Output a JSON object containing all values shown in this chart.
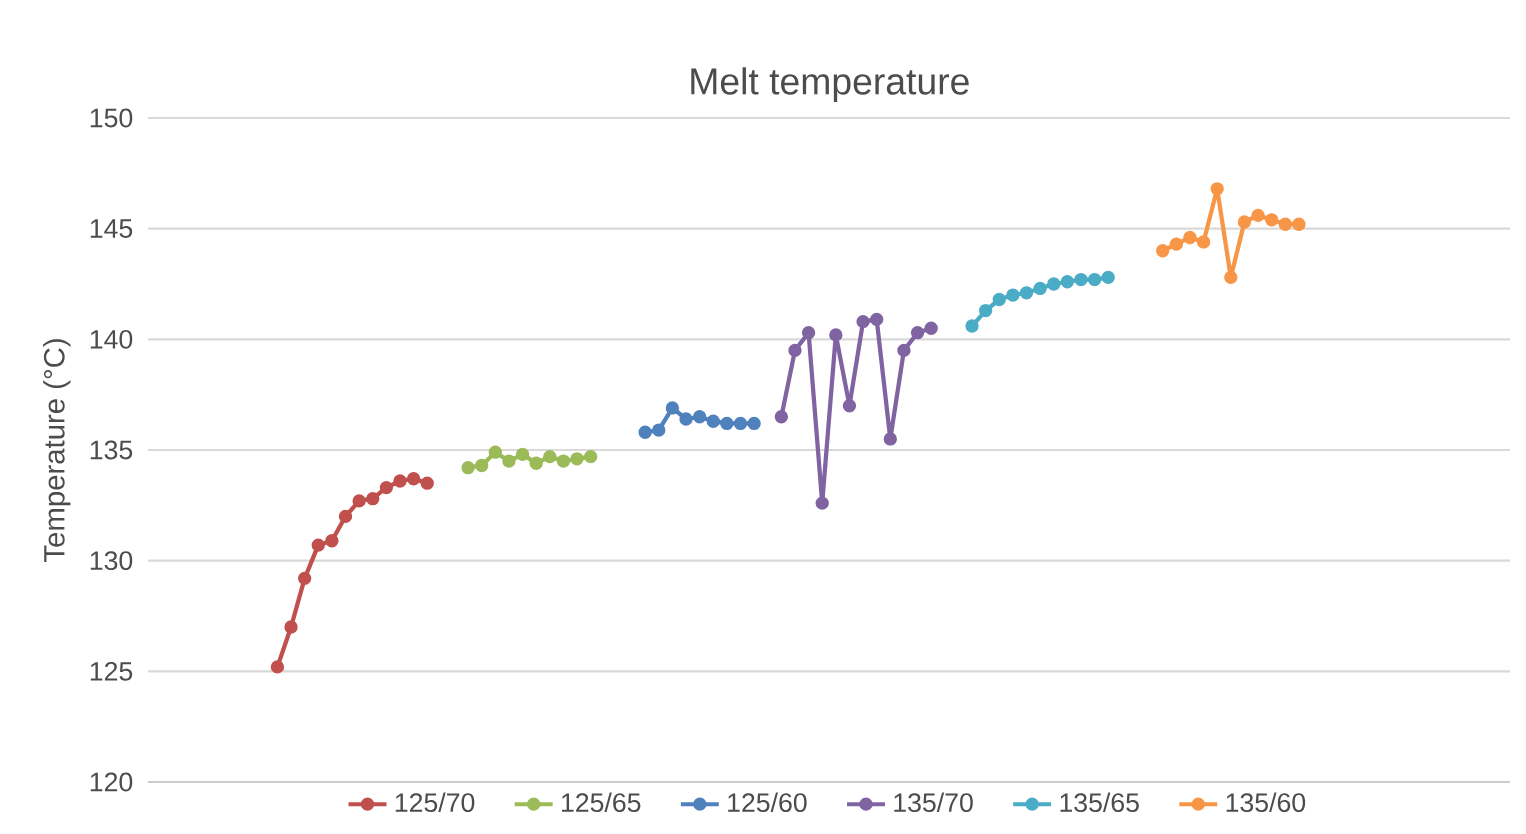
{
  "chart_data": {
    "type": "line",
    "title": "Melt temperature",
    "ylabel": "Temperature (°C)",
    "categories": [
      null,
      null,
      null,
      null,
      null,
      null,
      null,
      null,
      null,
      null,
      null,
      null,
      null,
      null,
      null,
      null,
      null,
      null,
      null,
      null,
      null,
      null,
      null,
      null,
      null,
      null,
      null,
      null,
      null,
      null,
      null,
      null,
      null,
      null,
      null,
      null,
      null,
      null,
      null,
      null,
      null,
      null,
      null,
      null,
      null,
      null,
      null,
      null,
      null,
      null,
      null,
      null,
      null,
      null,
      null,
      null,
      null,
      null,
      null,
      null,
      null,
      null,
      null,
      null,
      null,
      null,
      null,
      null,
      null,
      null,
      null,
      null,
      null,
      null,
      null,
      null,
      null,
      null,
      null,
      null,
      null,
      null,
      null,
      null,
      null,
      null,
      null,
      null,
      null,
      null,
      null,
      null,
      null,
      null,
      null,
      null,
      null,
      null,
      null,
      null
    ],
    "series": [
      {
        "name": "125/70",
        "color": "#c0504d",
        "values": [
          null,
          null,
          null,
          null,
          null,
          null,
          null,
          null,
          null,
          125.2,
          127.0,
          129.2,
          130.7,
          130.9,
          132.0,
          132.7,
          132.8,
          133.3,
          133.6,
          133.7,
          133.5,
          null,
          null,
          null,
          null,
          null,
          null,
          null,
          null,
          null,
          null,
          null,
          null,
          null,
          null,
          null,
          null,
          null,
          null,
          null,
          null,
          null,
          null,
          null,
          null,
          null,
          null,
          null,
          null,
          null,
          null,
          null,
          null,
          null,
          null,
          null,
          null,
          null,
          null,
          null,
          null,
          null,
          null,
          null,
          null,
          null,
          null,
          null,
          null,
          null,
          null,
          null,
          null,
          null,
          null,
          null,
          null,
          null,
          null,
          null,
          null,
          null,
          null,
          null,
          null,
          null,
          null,
          null,
          null,
          null,
          null,
          null,
          null,
          null,
          null,
          null,
          null,
          null,
          null,
          null
        ]
      },
      {
        "name": "125/65",
        "color": "#9bbb59",
        "values": [
          null,
          null,
          null,
          null,
          null,
          null,
          null,
          null,
          null,
          null,
          null,
          null,
          null,
          null,
          null,
          null,
          null,
          null,
          null,
          null,
          null,
          null,
          null,
          134.2,
          134.3,
          134.9,
          134.5,
          134.8,
          134.4,
          134.7,
          134.5,
          134.6,
          134.7,
          null,
          null,
          null,
          null,
          null,
          null,
          null,
          null,
          null,
          null,
          null,
          null,
          null,
          null,
          null,
          null,
          null,
          null,
          null,
          null,
          null,
          null,
          null,
          null,
          null,
          null,
          null,
          null,
          null,
          null,
          null,
          null,
          null,
          null,
          null,
          null,
          null,
          null,
          null,
          null,
          null,
          null,
          null,
          null,
          null,
          null,
          null,
          null,
          null,
          null,
          null,
          null,
          null,
          null,
          null,
          null,
          null,
          null,
          null,
          null,
          null,
          null,
          null,
          null,
          null,
          null,
          null
        ]
      },
      {
        "name": "125/60",
        "color": "#4f81bd",
        "values": [
          null,
          null,
          null,
          null,
          null,
          null,
          null,
          null,
          null,
          null,
          null,
          null,
          null,
          null,
          null,
          null,
          null,
          null,
          null,
          null,
          null,
          null,
          null,
          null,
          null,
          null,
          null,
          null,
          null,
          null,
          null,
          null,
          null,
          null,
          null,
          null,
          135.8,
          135.9,
          136.9,
          136.4,
          136.5,
          136.3,
          136.2,
          136.2,
          136.2,
          null,
          null,
          null,
          null,
          null,
          null,
          null,
          null,
          null,
          null,
          null,
          null,
          null,
          null,
          null,
          null,
          null,
          null,
          null,
          null,
          null,
          null,
          null,
          null,
          null,
          null,
          null,
          null,
          null,
          null,
          null,
          null,
          null,
          null,
          null,
          null,
          null,
          null,
          null,
          null,
          null,
          null,
          null,
          null,
          null,
          null,
          null,
          null,
          null,
          null,
          null,
          null,
          null,
          null,
          null
        ]
      },
      {
        "name": "135/70",
        "color": "#8064a2",
        "values": [
          null,
          null,
          null,
          null,
          null,
          null,
          null,
          null,
          null,
          null,
          null,
          null,
          null,
          null,
          null,
          null,
          null,
          null,
          null,
          null,
          null,
          null,
          null,
          null,
          null,
          null,
          null,
          null,
          null,
          null,
          null,
          null,
          null,
          null,
          null,
          null,
          null,
          null,
          null,
          null,
          null,
          null,
          null,
          null,
          null,
          null,
          136.5,
          139.5,
          140.3,
          132.6,
          140.2,
          137.0,
          140.8,
          140.9,
          135.5,
          139.5,
          140.3,
          140.5,
          null,
          null,
          null,
          null,
          null,
          null,
          null,
          null,
          null,
          null,
          null,
          null,
          null,
          null,
          null,
          null,
          null,
          null,
          null,
          null,
          null,
          null,
          null,
          null,
          null,
          null,
          null,
          null,
          null,
          null,
          null,
          null,
          null,
          null,
          null,
          null,
          null,
          null,
          null,
          null,
          null,
          null
        ]
      },
      {
        "name": "135/65",
        "color": "#4bacc6",
        "values": [
          null,
          null,
          null,
          null,
          null,
          null,
          null,
          null,
          null,
          null,
          null,
          null,
          null,
          null,
          null,
          null,
          null,
          null,
          null,
          null,
          null,
          null,
          null,
          null,
          null,
          null,
          null,
          null,
          null,
          null,
          null,
          null,
          null,
          null,
          null,
          null,
          null,
          null,
          null,
          null,
          null,
          null,
          null,
          null,
          null,
          null,
          null,
          null,
          null,
          null,
          null,
          null,
          null,
          null,
          null,
          null,
          null,
          null,
          null,
          null,
          140.6,
          141.3,
          141.8,
          142.0,
          142.1,
          142.3,
          142.5,
          142.6,
          142.7,
          142.7,
          142.8,
          null,
          null,
          null,
          null,
          null,
          null,
          null,
          null,
          null,
          null,
          null,
          null,
          null,
          null,
          null,
          null,
          null,
          null,
          null,
          null,
          null,
          null,
          null,
          null,
          null,
          null,
          null,
          null,
          null
        ]
      },
      {
        "name": "135/60",
        "color": "#f79646",
        "values": [
          null,
          null,
          null,
          null,
          null,
          null,
          null,
          null,
          null,
          null,
          null,
          null,
          null,
          null,
          null,
          null,
          null,
          null,
          null,
          null,
          null,
          null,
          null,
          null,
          null,
          null,
          null,
          null,
          null,
          null,
          null,
          null,
          null,
          null,
          null,
          null,
          null,
          null,
          null,
          null,
          null,
          null,
          null,
          null,
          null,
          null,
          null,
          null,
          null,
          null,
          null,
          null,
          null,
          null,
          null,
          null,
          null,
          null,
          null,
          null,
          null,
          null,
          null,
          null,
          null,
          null,
          null,
          null,
          null,
          null,
          null,
          null,
          null,
          null,
          144.0,
          144.3,
          144.6,
          144.4,
          146.8,
          142.8,
          145.3,
          145.6,
          145.4,
          145.2,
          145.2,
          null,
          null,
          null,
          null,
          null,
          null,
          null,
          null,
          null,
          null,
          null,
          null,
          null,
          null,
          null
        ]
      }
    ],
    "ylim": [
      120,
      150
    ],
    "yticks": [
      120,
      125,
      130,
      135,
      140,
      145,
      150
    ],
    "grid": "y",
    "legend": "bottom",
    "marker": "circle",
    "line_style": "solid"
  }
}
